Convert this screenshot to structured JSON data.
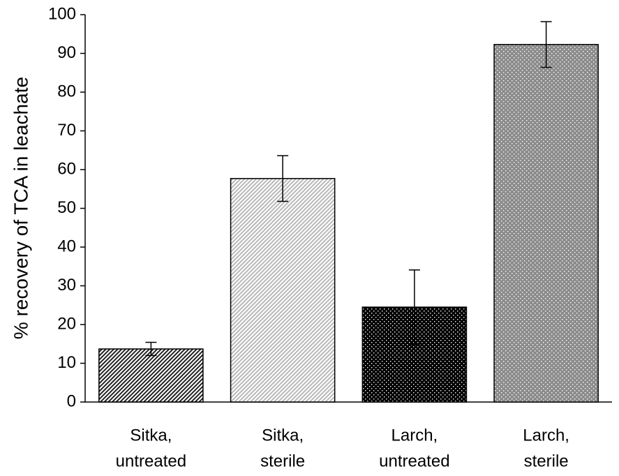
{
  "chart_data": {
    "type": "bar",
    "y_label": "% recovery of TCA in leachate",
    "categories": [
      [
        "Sitka,",
        "untreated"
      ],
      [
        "Sitka,",
        "sterile"
      ],
      [
        "Larch,",
        "untreated"
      ],
      [
        "Larch,",
        "sterile"
      ]
    ],
    "values": [
      13.7,
      57.7,
      24.5,
      92.3
    ],
    "errors": [
      1.7,
      5.9,
      9.6,
      5.9
    ],
    "colors": [
      "#222222",
      "#b8b8b8",
      "#000000",
      "#8c8c8c"
    ],
    "patterns": [
      "hatch",
      "hatch",
      "dots",
      "dots"
    ],
    "ylim": [
      0,
      100
    ],
    "yticks": [
      0,
      10,
      20,
      30,
      40,
      50,
      60,
      70,
      80,
      90,
      100
    ]
  }
}
